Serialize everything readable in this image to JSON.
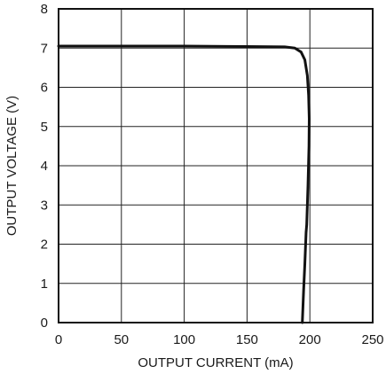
{
  "chart_data": {
    "type": "line",
    "title": "",
    "xlabel": "OUTPUT CURRENT (mA)",
    "ylabel": "OUTPUT VOLTAGE (V)",
    "xlim": [
      0,
      250
    ],
    "ylim": [
      0,
      8
    ],
    "xticks": [
      0,
      50,
      100,
      150,
      200,
      250
    ],
    "yticks": [
      0,
      1,
      2,
      3,
      4,
      5,
      6,
      7,
      8
    ],
    "xtick_labels": [
      "0",
      "50",
      "100",
      "150",
      "200",
      "250"
    ],
    "ytick_labels": [
      "0",
      "1",
      "2",
      "3",
      "4",
      "5",
      "6",
      "7",
      "8"
    ],
    "grid": true,
    "legend": "none",
    "colors": {
      "line": "#111111",
      "grid": "#222222",
      "frame": "#111111"
    },
    "series": [
      {
        "x": [
          0,
          50,
          100,
          150,
          180,
          188,
          193,
          196,
          198,
          199,
          199.5,
          199.3,
          198.5,
          197.5,
          197,
          196,
          195,
          194
        ],
        "y": [
          7.05,
          7.05,
          7.05,
          7.04,
          7.03,
          7.0,
          6.9,
          6.7,
          6.3,
          5.8,
          5.2,
          4.5,
          3.5,
          2.5,
          2.3,
          1.5,
          0.8,
          0
        ]
      }
    ]
  }
}
